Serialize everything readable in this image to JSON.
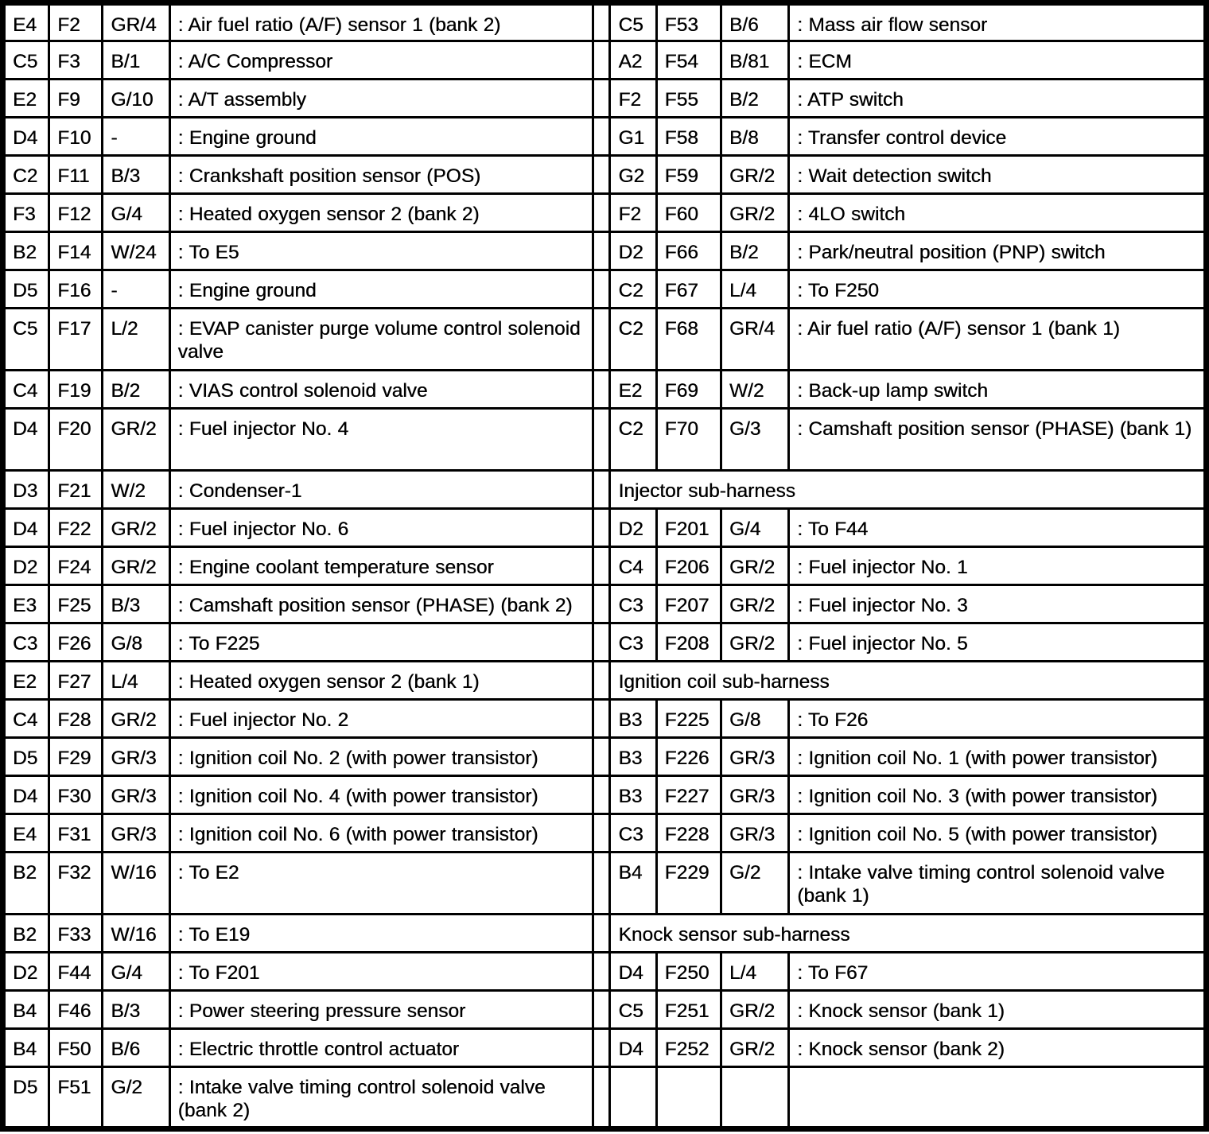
{
  "table": {
    "rows": [
      {
        "tall": false,
        "left": {
          "grid": "E4",
          "connector": "F2",
          "color": "GR/4",
          "desc": ": Air fuel ratio (A/F) sensor 1 (bank 2)"
        },
        "right": {
          "grid": "C5",
          "connector": "F53",
          "color": "B/6",
          "desc": ": Mass air flow sensor"
        }
      },
      {
        "tall": false,
        "left": {
          "grid": "C5",
          "connector": "F3",
          "color": "B/1",
          "desc": ": A/C Compressor"
        },
        "right": {
          "grid": "A2",
          "connector": "F54",
          "color": "B/81",
          "desc": ": ECM"
        }
      },
      {
        "tall": false,
        "left": {
          "grid": "E2",
          "connector": "F9",
          "color": "G/10",
          "desc": ": A/T assembly"
        },
        "right": {
          "grid": "F2",
          "connector": "F55",
          "color": "B/2",
          "desc": ": ATP switch"
        }
      },
      {
        "tall": false,
        "left": {
          "grid": "D4",
          "connector": "F10",
          "color": "-",
          "desc": ": Engine ground"
        },
        "right": {
          "grid": "G1",
          "connector": "F58",
          "color": "B/8",
          "desc": ": Transfer control device"
        }
      },
      {
        "tall": false,
        "left": {
          "grid": "C2",
          "connector": "F11",
          "color": "B/3",
          "desc": ": Crankshaft position sensor (POS)"
        },
        "right": {
          "grid": "G2",
          "connector": "F59",
          "color": "GR/2",
          "desc": ": Wait detection switch"
        }
      },
      {
        "tall": false,
        "left": {
          "grid": "F3",
          "connector": "F12",
          "color": "G/4",
          "desc": ": Heated oxygen sensor 2 (bank 2)"
        },
        "right": {
          "grid": "F2",
          "connector": "F60",
          "color": "GR/2",
          "desc": ": 4LO switch"
        }
      },
      {
        "tall": false,
        "left": {
          "grid": "B2",
          "connector": "F14",
          "color": "W/24",
          "desc": ": To E5"
        },
        "right": {
          "grid": "D2",
          "connector": "F66",
          "color": "B/2",
          "desc": ": Park/neutral position (PNP) switch"
        }
      },
      {
        "tall": false,
        "left": {
          "grid": "D5",
          "connector": "F16",
          "color": "-",
          "desc": ": Engine ground"
        },
        "right": {
          "grid": "C2",
          "connector": "F67",
          "color": "L/4",
          "desc": ": To F250"
        }
      },
      {
        "tall": true,
        "left": {
          "grid": "C5",
          "connector": "F17",
          "color": "L/2",
          "desc": ": EVAP canister purge volume control solenoid valve"
        },
        "right": {
          "grid": "C2",
          "connector": "F68",
          "color": "GR/4",
          "desc": ": Air fuel ratio (A/F) sensor 1 (bank 1)"
        }
      },
      {
        "tall": false,
        "left": {
          "grid": "C4",
          "connector": "F19",
          "color": "B/2",
          "desc": ": VIAS control solenoid valve"
        },
        "right": {
          "grid": "E2",
          "connector": "F69",
          "color": "W/2",
          "desc": ": Back-up lamp switch"
        }
      },
      {
        "tall": true,
        "left": {
          "grid": "D4",
          "connector": "F20",
          "color": "GR/2",
          "desc": ": Fuel injector No. 4"
        },
        "right": {
          "grid": "C2",
          "connector": "F70",
          "color": "G/3",
          "desc": ": Camshaft position sensor (PHASE) (bank 1)"
        }
      },
      {
        "tall": false,
        "left": {
          "grid": "D3",
          "connector": "F21",
          "color": "W/2",
          "desc": ": Condenser-1"
        },
        "right": {
          "section": "Injector sub-harness"
        }
      },
      {
        "tall": false,
        "left": {
          "grid": "D4",
          "connector": "F22",
          "color": "GR/2",
          "desc": ": Fuel injector No. 6"
        },
        "right": {
          "grid": "D2",
          "connector": "F201",
          "color": "G/4",
          "desc": ": To F44"
        }
      },
      {
        "tall": false,
        "left": {
          "grid": "D2",
          "connector": "F24",
          "color": "GR/2",
          "desc": ": Engine coolant temperature sensor"
        },
        "right": {
          "grid": "C4",
          "connector": "F206",
          "color": "GR/2",
          "desc": ": Fuel injector No. 1"
        }
      },
      {
        "tall": false,
        "left": {
          "grid": "E3",
          "connector": "F25",
          "color": "B/3",
          "desc": ": Camshaft position sensor (PHASE) (bank 2)"
        },
        "right": {
          "grid": "C3",
          "connector": "F207",
          "color": "GR/2",
          "desc": ": Fuel injector No. 3"
        }
      },
      {
        "tall": false,
        "left": {
          "grid": "C3",
          "connector": "F26",
          "color": "G/8",
          "desc": ": To F225"
        },
        "right": {
          "grid": "C3",
          "connector": "F208",
          "color": "GR/2",
          "desc": ": Fuel injector No. 5"
        }
      },
      {
        "tall": false,
        "left": {
          "grid": "E2",
          "connector": "F27",
          "color": "L/4",
          "desc": ": Heated oxygen sensor 2 (bank 1)"
        },
        "right": {
          "section": "Ignition coil sub-harness"
        }
      },
      {
        "tall": false,
        "left": {
          "grid": "C4",
          "connector": "F28",
          "color": "GR/2",
          "desc": ": Fuel injector No. 2"
        },
        "right": {
          "grid": "B3",
          "connector": "F225",
          "color": "G/8",
          "desc": ": To F26"
        }
      },
      {
        "tall": false,
        "left": {
          "grid": "D5",
          "connector": "F29",
          "color": "GR/3",
          "desc": ": Ignition coil No. 2 (with power transistor)"
        },
        "right": {
          "grid": "B3",
          "connector": "F226",
          "color": "GR/3",
          "desc": ": Ignition coil No. 1 (with power transistor)"
        }
      },
      {
        "tall": false,
        "left": {
          "grid": "D4",
          "connector": "F30",
          "color": "GR/3",
          "desc": ": Ignition coil No. 4 (with power transistor)"
        },
        "right": {
          "grid": "B3",
          "connector": "F227",
          "color": "GR/3",
          "desc": ": Ignition coil No. 3 (with power transistor)"
        }
      },
      {
        "tall": false,
        "left": {
          "grid": "E4",
          "connector": "F31",
          "color": "GR/3",
          "desc": ": Ignition coil No. 6 (with power transistor)"
        },
        "right": {
          "grid": "C3",
          "connector": "F228",
          "color": "GR/3",
          "desc": ": Ignition coil No. 5 (with power transistor)"
        }
      },
      {
        "tall": true,
        "left": {
          "grid": "B2",
          "connector": "F32",
          "color": "W/16",
          "desc": ": To E2"
        },
        "right": {
          "grid": "B4",
          "connector": "F229",
          "color": "G/2",
          "desc": ": Intake valve timing control solenoid valve (bank 1)"
        }
      },
      {
        "tall": false,
        "left": {
          "grid": "B2",
          "connector": "F33",
          "color": "W/16",
          "desc": ": To E19"
        },
        "right": {
          "section": "Knock sensor sub-harness"
        }
      },
      {
        "tall": false,
        "left": {
          "grid": "D2",
          "connector": "F44",
          "color": "G/4",
          "desc": ": To F201"
        },
        "right": {
          "grid": "D4",
          "connector": "F250",
          "color": "L/4",
          "desc": ": To F67"
        }
      },
      {
        "tall": false,
        "left": {
          "grid": "B4",
          "connector": "F46",
          "color": "B/3",
          "desc": ": Power steering pressure sensor"
        },
        "right": {
          "grid": "C5",
          "connector": "F251",
          "color": "GR/2",
          "desc": ": Knock sensor (bank 1)"
        }
      },
      {
        "tall": false,
        "left": {
          "grid": "B4",
          "connector": "F50",
          "color": "B/6",
          "desc": ": Electric throttle control actuator"
        },
        "right": {
          "grid": "D4",
          "connector": "F252",
          "color": "GR/2",
          "desc": ": Knock sensor (bank 2)"
        }
      },
      {
        "tall": true,
        "left": {
          "grid": "D5",
          "connector": "F51",
          "color": "G/2",
          "desc": ": Intake valve timing control solenoid valve (bank 2)"
        },
        "right": null
      }
    ]
  }
}
